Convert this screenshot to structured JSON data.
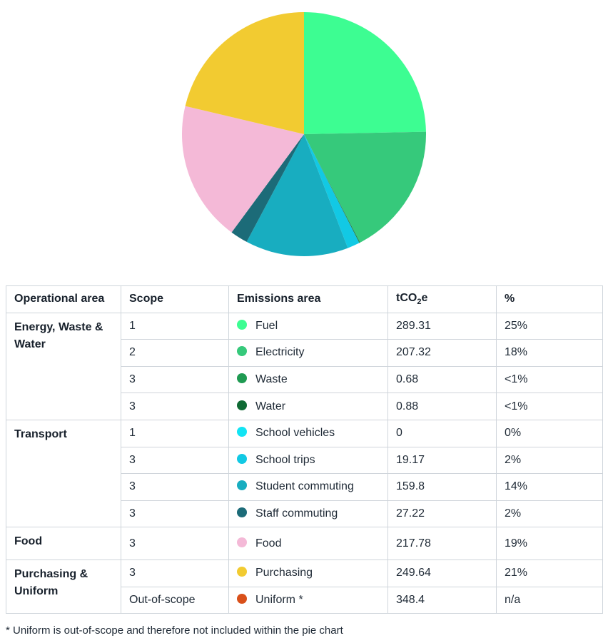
{
  "chart_data": {
    "type": "pie",
    "unit": "tCO2e",
    "slices": [
      {
        "label": "Fuel",
        "value": 289.31,
        "color": "#3dfd92"
      },
      {
        "label": "Electricity",
        "value": 207.32,
        "color": "#36c97b"
      },
      {
        "label": "Waste",
        "value": 0.68,
        "color": "#1f9a52"
      },
      {
        "label": "Water",
        "value": 0.88,
        "color": "#0f6a34"
      },
      {
        "label": "School vehicles",
        "value": 0,
        "color": "#12e4f4"
      },
      {
        "label": "School trips",
        "value": 19.17,
        "color": "#12c9e4"
      },
      {
        "label": "Student commuting",
        "value": 159.8,
        "color": "#18adc0"
      },
      {
        "label": "Staff commuting",
        "value": 27.22,
        "color": "#1c6b78"
      },
      {
        "label": "Food",
        "value": 217.78,
        "color": "#f4b9d7"
      },
      {
        "label": "Purchasing",
        "value": 249.64,
        "color": "#f2cb31"
      }
    ]
  },
  "table": {
    "headers": {
      "operational_area": "Operational area",
      "scope": "Scope",
      "emissions_area": "Emissions area",
      "tco2e_prefix": "tCO",
      "tco2e_sub": "2",
      "tco2e_suffix": "e",
      "percent": "%"
    },
    "groups": [
      {
        "area": "Energy, Waste & Water",
        "rows": [
          {
            "scope": "1",
            "emissions": "Fuel",
            "tco2e": "289.31",
            "percent": "25%",
            "color": "#3dfd92"
          },
          {
            "scope": "2",
            "emissions": "Electricity",
            "tco2e": "207.32",
            "percent": "18%",
            "color": "#36c97b"
          },
          {
            "scope": "3",
            "emissions": "Waste",
            "tco2e": "0.68",
            "percent": "<1%",
            "color": "#1f9a52"
          },
          {
            "scope": "3",
            "emissions": "Water",
            "tco2e": "0.88",
            "percent": "<1%",
            "color": "#0f6a34"
          }
        ]
      },
      {
        "area": "Transport",
        "rows": [
          {
            "scope": "1",
            "emissions": "School vehicles",
            "tco2e": "0",
            "percent": "0%",
            "color": "#12e4f4"
          },
          {
            "scope": "3",
            "emissions": "School trips",
            "tco2e": "19.17",
            "percent": "2%",
            "color": "#12c9e4"
          },
          {
            "scope": "3",
            "emissions": "Student commuting",
            "tco2e": "159.8",
            "percent": "14%",
            "color": "#18adc0"
          },
          {
            "scope": "3",
            "emissions": "Staff commuting",
            "tco2e": "27.22",
            "percent": "2%",
            "color": "#1c6b78"
          }
        ]
      },
      {
        "area": "Food",
        "rows": [
          {
            "scope": "3",
            "emissions": "Food",
            "tco2e": "217.78",
            "percent": "19%",
            "color": "#f4b9d7"
          }
        ]
      },
      {
        "area": "Purchasing & Uniform",
        "rows": [
          {
            "scope": "3",
            "emissions": "Purchasing",
            "tco2e": "249.64",
            "percent": "21%",
            "color": "#f2cb31"
          },
          {
            "scope": "Out-of-scope",
            "emissions": "Uniform *",
            "tco2e": "348.4",
            "percent": "n/a",
            "color": "#d9501a"
          }
        ]
      }
    ]
  },
  "footnote": "* Uniform is out-of-scope and therefore not included within the pie chart"
}
